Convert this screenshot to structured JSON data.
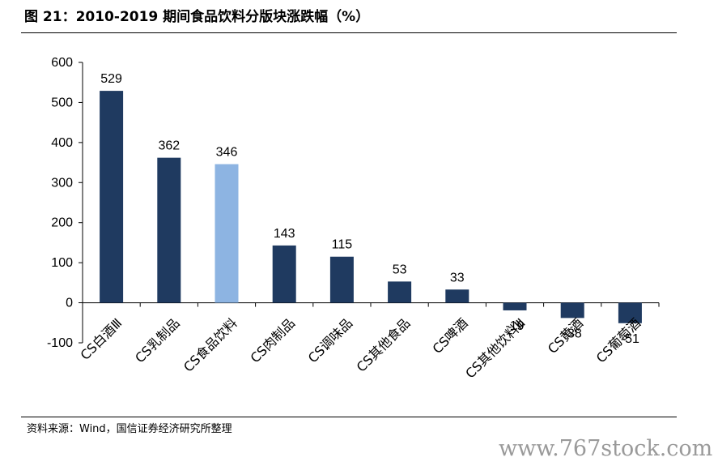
{
  "header": {
    "title": "图 21：2010-2019 期间食品饮料分版块涨跌幅（%）"
  },
  "footer": {
    "source": "资料来源：Wind，国信证券经济研究所整理",
    "watermark": "www.767stock.com"
  },
  "chart_data": {
    "type": "bar",
    "title": "图 21：2010-2019 期间食品饮料分版块涨跌幅（%）",
    "xlabel": "",
    "ylabel": "",
    "ylim": [
      -100,
      600
    ],
    "yticks": [
      600,
      500,
      400,
      300,
      200,
      100,
      0,
      -100
    ],
    "categories": [
      "CS白酒Ⅲ",
      "CS乳制品",
      "CS食品饮料",
      "CS肉制品",
      "CS调味品",
      "CS其他食品",
      "CS啤酒",
      "CS其他饮料Ⅲ",
      "CS黄酒",
      "CS葡萄酒"
    ],
    "values": [
      529,
      362,
      346,
      143,
      115,
      53,
      33,
      -19,
      -38,
      -51
    ],
    "data_labels": [
      "529",
      "362",
      "346",
      "143",
      "115",
      "53",
      "33",
      "-19",
      "-38",
      "-51"
    ],
    "colors": {
      "default": "#1f3a60",
      "highlight": "#8db4e2"
    },
    "highlight_category": "CS食品饮料",
    "grid": false,
    "legend": "none"
  }
}
